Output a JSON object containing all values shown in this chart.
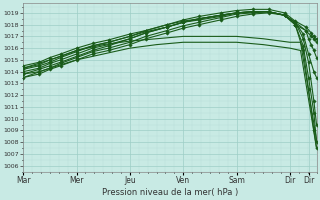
{
  "bg_color": "#c8eae4",
  "line_color": "#1a5c1a",
  "grid_color": "#9ecec6",
  "ylabel_ticks": [
    1006,
    1007,
    1008,
    1009,
    1010,
    1011,
    1012,
    1013,
    1014,
    1015,
    1016,
    1017,
    1018,
    1019
  ],
  "xtick_labels": [
    "Mar",
    "Mer",
    "Jeu",
    "Ven",
    "Sam",
    "Dir"
  ],
  "xlabel": "Pression niveau de la mer( hPa )",
  "ylim": [
    1005.5,
    1019.8
  ],
  "xlim": [
    0,
    5.5
  ],
  "series": [
    {
      "x": [
        0.0,
        0.3,
        0.5,
        0.7,
        1.0,
        1.3,
        1.6,
        2.0,
        2.3,
        2.7,
        3.0,
        3.3,
        3.7,
        4.0,
        4.3,
        4.6,
        4.9,
        5.1,
        5.3,
        5.4,
        5.45,
        5.5
      ],
      "y": [
        1013.8,
        1014.2,
        1014.5,
        1014.8,
        1015.3,
        1015.8,
        1016.2,
        1016.8,
        1017.3,
        1017.8,
        1018.2,
        1018.5,
        1018.8,
        1019.0,
        1019.1,
        1019.1,
        1018.8,
        1018.0,
        1017.5,
        1017.0,
        1016.8,
        1016.5
      ],
      "marker": "D",
      "ms": 1.8,
      "lw": 0.8
    },
    {
      "x": [
        0.0,
        0.3,
        0.5,
        0.7,
        1.0,
        1.3,
        1.6,
        2.0,
        2.3,
        2.7,
        3.0,
        3.3,
        3.7,
        4.0,
        4.3,
        4.6,
        4.9,
        5.1,
        5.3,
        5.4,
        5.45,
        5.5
      ],
      "y": [
        1014.2,
        1014.5,
        1014.8,
        1015.2,
        1015.7,
        1016.2,
        1016.5,
        1017.0,
        1017.5,
        1018.0,
        1018.4,
        1018.7,
        1019.0,
        1019.2,
        1019.3,
        1019.3,
        1019.0,
        1018.3,
        1017.8,
        1017.3,
        1017.0,
        1016.8
      ],
      "marker": "D",
      "ms": 1.8,
      "lw": 0.8
    },
    {
      "x": [
        0.0,
        0.3,
        0.5,
        0.7,
        1.0,
        1.3,
        1.6,
        2.0,
        2.3,
        2.7,
        3.0,
        3.3,
        3.7,
        4.0,
        4.3,
        4.6,
        4.9,
        5.1,
        5.3,
        5.35,
        5.4,
        5.45,
        5.5
      ],
      "y": [
        1014.5,
        1014.8,
        1015.2,
        1015.5,
        1016.0,
        1016.4,
        1016.7,
        1017.2,
        1017.5,
        1018.0,
        1018.3,
        1018.5,
        1018.8,
        1019.0,
        1019.1,
        1019.1,
        1018.8,
        1018.2,
        1017.5,
        1016.8,
        1016.3,
        1015.8,
        1015.2
      ],
      "marker": "D",
      "ms": 1.8,
      "lw": 0.8
    },
    {
      "x": [
        0.0,
        0.3,
        0.5,
        0.7,
        1.0,
        1.3,
        1.6,
        2.0,
        2.3,
        2.7,
        3.0,
        3.3,
        3.7,
        4.0,
        4.3,
        4.6,
        4.9,
        5.1,
        5.25,
        5.35,
        5.45,
        5.5
      ],
      "y": [
        1013.5,
        1013.8,
        1014.2,
        1014.5,
        1015.0,
        1015.5,
        1015.8,
        1016.3,
        1016.8,
        1017.3,
        1017.7,
        1018.0,
        1018.4,
        1018.7,
        1018.9,
        1019.0,
        1018.8,
        1018.2,
        1017.2,
        1015.5,
        1014.0,
        1013.5
      ],
      "marker": "D",
      "ms": 1.8,
      "lw": 0.8
    },
    {
      "x": [
        0.0,
        0.3,
        0.5,
        0.7,
        1.0,
        1.3,
        1.6,
        2.0,
        2.3,
        2.7,
        3.0,
        3.3,
        3.7,
        4.0,
        4.3,
        4.6,
        4.9,
        5.1,
        5.25,
        5.35,
        5.45,
        5.5
      ],
      "y": [
        1014.0,
        1014.3,
        1014.7,
        1015.0,
        1015.5,
        1016.0,
        1016.3,
        1016.8,
        1017.3,
        1017.8,
        1018.2,
        1018.5,
        1018.8,
        1019.0,
        1019.1,
        1019.1,
        1018.8,
        1018.2,
        1016.8,
        1014.8,
        1011.5,
        1009.5
      ],
      "marker": "D",
      "ms": 1.8,
      "lw": 0.8
    },
    {
      "x": [
        0.0,
        0.3,
        0.5,
        0.7,
        1.0,
        1.3,
        1.6,
        2.0,
        2.3,
        2.7,
        3.0,
        3.3,
        3.7,
        4.0,
        4.3,
        4.6,
        4.9,
        5.1,
        5.25,
        5.35,
        5.45,
        5.5
      ],
      "y": [
        1013.8,
        1014.0,
        1014.3,
        1014.7,
        1015.2,
        1015.7,
        1016.0,
        1016.5,
        1017.0,
        1017.5,
        1017.9,
        1018.2,
        1018.6,
        1018.9,
        1019.0,
        1019.1,
        1018.8,
        1018.0,
        1016.2,
        1013.5,
        1010.5,
        1008.0
      ],
      "marker": "D",
      "ms": 1.8,
      "lw": 0.8
    },
    {
      "x": [
        0.0,
        0.3,
        0.5,
        0.7,
        1.0,
        1.3,
        1.6,
        2.0,
        2.3,
        2.7,
        3.0,
        3.3,
        3.7,
        4.0,
        4.3,
        4.6,
        4.9,
        5.1,
        5.25,
        5.35,
        5.45,
        5.5
      ],
      "y": [
        1014.3,
        1014.6,
        1015.0,
        1015.3,
        1015.8,
        1016.2,
        1016.5,
        1017.0,
        1017.4,
        1017.8,
        1018.2,
        1018.4,
        1018.7,
        1019.0,
        1019.1,
        1019.1,
        1018.8,
        1018.0,
        1015.8,
        1012.5,
        1009.0,
        1007.5
      ],
      "marker": "D",
      "ms": 1.8,
      "lw": 0.8
    },
    {
      "x": [
        0.0,
        0.5,
        1.0,
        1.5,
        2.0,
        2.5,
        3.0,
        3.5,
        4.0,
        4.5,
        5.0,
        5.2,
        5.5
      ],
      "y": [
        1014.3,
        1015.0,
        1015.8,
        1016.3,
        1016.6,
        1016.8,
        1017.0,
        1017.0,
        1017.0,
        1016.8,
        1016.5,
        1016.5,
        1008.2
      ],
      "marker": null,
      "ms": 0,
      "lw": 0.8
    },
    {
      "x": [
        0.0,
        0.5,
        1.0,
        1.5,
        2.0,
        2.5,
        3.0,
        3.5,
        4.0,
        4.5,
        5.0,
        5.2,
        5.5
      ],
      "y": [
        1013.5,
        1014.3,
        1015.0,
        1015.5,
        1016.0,
        1016.3,
        1016.5,
        1016.5,
        1016.5,
        1016.3,
        1016.0,
        1015.8,
        1007.5
      ],
      "marker": null,
      "ms": 0,
      "lw": 0.8
    }
  ],
  "minor_grid_color": "#b8dcd8",
  "spine_color": "#888888"
}
